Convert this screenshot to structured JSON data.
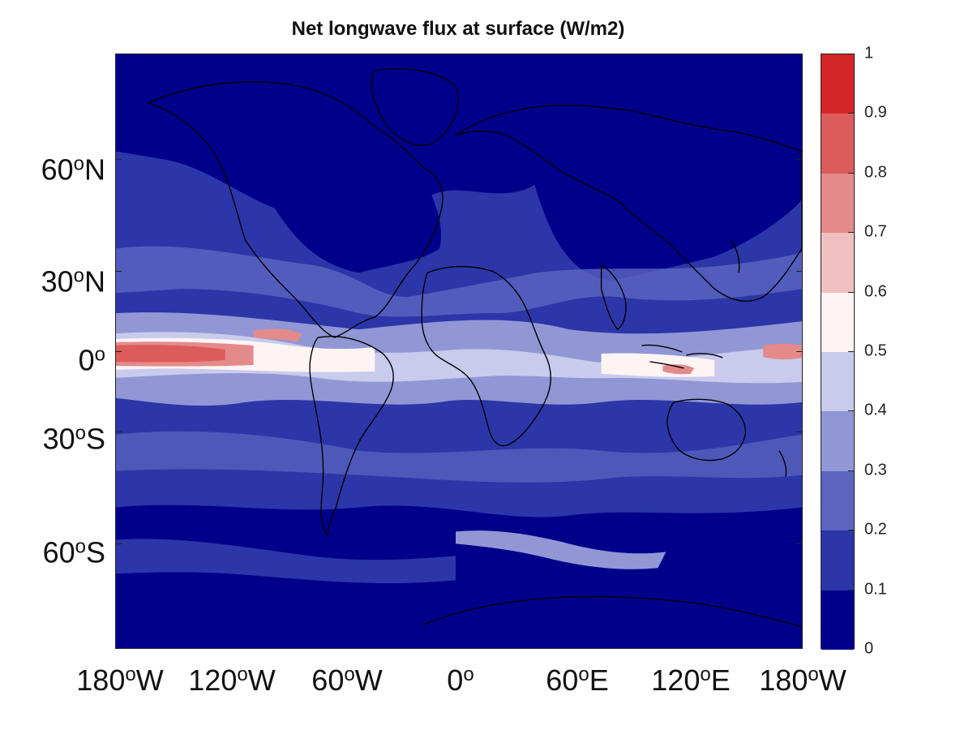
{
  "title": "Net longwave flux at surface (W/m2)",
  "lat_labels": [
    {
      "deg": "60",
      "sup": "o",
      "hem": "N"
    },
    {
      "deg": "30",
      "sup": "o",
      "hem": "N"
    },
    {
      "deg": "0",
      "sup": "o",
      "hem": ""
    },
    {
      "deg": "30",
      "sup": "o",
      "hem": "S"
    },
    {
      "deg": "60",
      "sup": "o",
      "hem": "S"
    }
  ],
  "lon_labels": [
    {
      "deg": "180",
      "sup": "o",
      "hem": "W"
    },
    {
      "deg": "120",
      "sup": "o",
      "hem": "W"
    },
    {
      "deg": "60",
      "sup": "o",
      "hem": "W"
    },
    {
      "deg": "0",
      "sup": "o",
      "hem": ""
    },
    {
      "deg": "60",
      "sup": "o",
      "hem": "E"
    },
    {
      "deg": "120",
      "sup": "o",
      "hem": "E"
    },
    {
      "deg": "180",
      "sup": "o",
      "hem": "W"
    }
  ],
  "colorbar": {
    "ticks": [
      "1",
      "0.9",
      "0.8",
      "0.7",
      "0.6",
      "0.5",
      "0.4",
      "0.3",
      "0.2",
      "0.1",
      "0"
    ],
    "colors_low_to_high": [
      "#00008b",
      "#2c36a8",
      "#5c66c0",
      "#9097d4",
      "#c8cbec",
      "#fff4f4",
      "#f0c0c0",
      "#e48a8a",
      "#dc5b5b",
      "#d42626"
    ]
  },
  "colors": {
    "background_field": "#2c36a8",
    "land_low": "#00008b",
    "equatorial_high": "#dc5b5b",
    "coastline": "#000000"
  }
}
